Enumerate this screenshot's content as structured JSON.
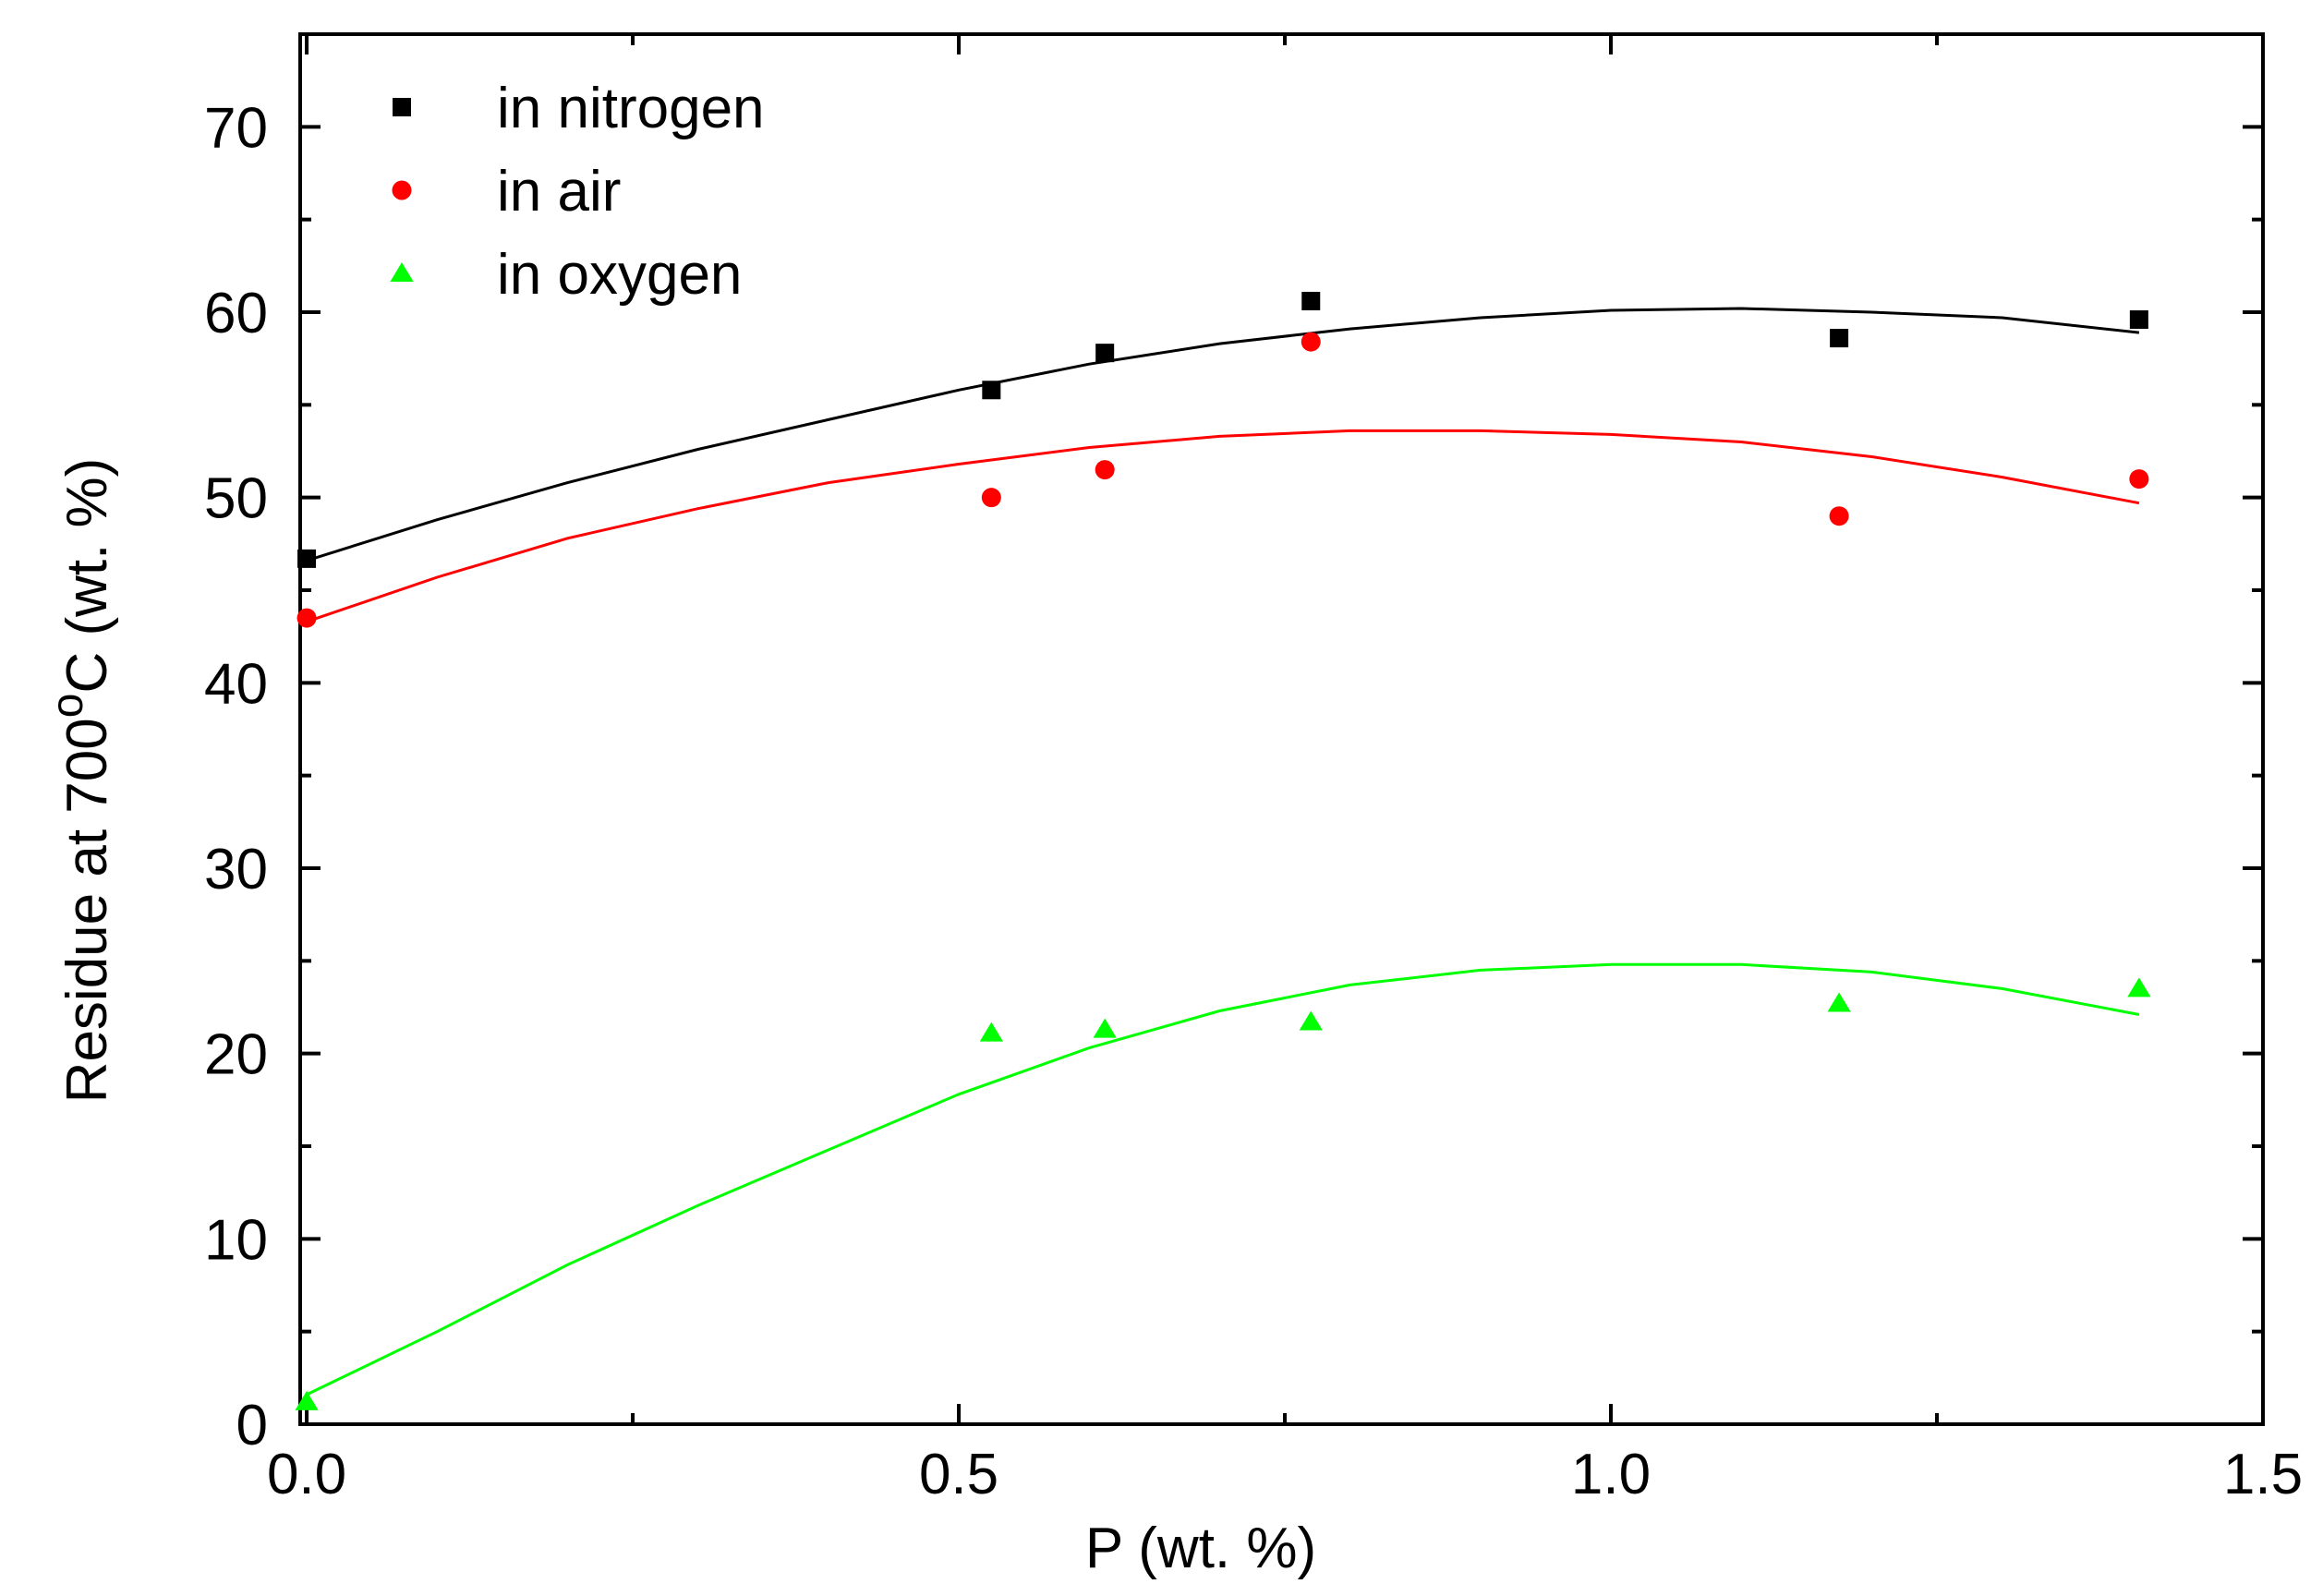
{
  "chart_data": {
    "type": "scatter",
    "title": "",
    "xlabel": "P (wt. %)",
    "ylabel": {
      "prefix": "Residue at 700",
      "superscript": "o",
      "suffix": "C (wt. %)"
    },
    "xlim": [
      -0.005,
      1.5
    ],
    "ylim": [
      0,
      75
    ],
    "x_ticks": [
      0.0,
      0.5,
      1.0,
      1.5
    ],
    "x_tick_labels": [
      "0.0",
      "0.5",
      "1.0",
      "1.5"
    ],
    "x_minor_ticks": [
      0.25,
      0.75,
      1.25
    ],
    "y_ticks": [
      0,
      10,
      20,
      30,
      40,
      50,
      60,
      70
    ],
    "y_tick_labels": [
      "0",
      "10",
      "20",
      "30",
      "40",
      "50",
      "60",
      "70"
    ],
    "y_minor_ticks": [
      5,
      15,
      25,
      35,
      45,
      55,
      65
    ],
    "grid": false,
    "legend_position": "top-left",
    "series": [
      {
        "name": "in nitrogen",
        "marker": "square",
        "color": "#000000",
        "x": [
          0.0,
          0.525,
          0.612,
          0.77,
          1.175,
          1.405
        ],
        "y": [
          46.7,
          55.8,
          57.8,
          60.6,
          58.6,
          59.6
        ],
        "fit": {
          "x": [
            0.0,
            0.1,
            0.2,
            0.3,
            0.4,
            0.5,
            0.6,
            0.7,
            0.8,
            0.9,
            1.0,
            1.1,
            1.2,
            1.3,
            1.405
          ],
          "y": [
            46.6,
            48.8,
            50.8,
            52.6,
            54.2,
            55.8,
            57.2,
            58.3,
            59.1,
            59.7,
            60.1,
            60.2,
            60.0,
            59.7,
            58.9
          ]
        }
      },
      {
        "name": "in air",
        "marker": "circle",
        "color": "#ff0000",
        "x": [
          0.0,
          0.525,
          0.612,
          0.77,
          1.175,
          1.405
        ],
        "y": [
          43.5,
          50.0,
          51.5,
          58.4,
          49.0,
          51.0
        ],
        "fit": {
          "x": [
            0.0,
            0.1,
            0.2,
            0.3,
            0.4,
            0.5,
            0.6,
            0.7,
            0.8,
            0.9,
            1.0,
            1.1,
            1.2,
            1.3,
            1.405
          ],
          "y": [
            43.3,
            45.7,
            47.8,
            49.4,
            50.8,
            51.8,
            52.7,
            53.3,
            53.6,
            53.6,
            53.4,
            53.0,
            52.2,
            51.1,
            49.7
          ]
        }
      },
      {
        "name": "in oxygen",
        "marker": "triangle",
        "color": "#00ff00",
        "x": [
          0.0,
          0.525,
          0.612,
          0.77,
          1.175,
          1.405
        ],
        "y": [
          1.2,
          21.1,
          21.3,
          21.7,
          22.7,
          23.5
        ],
        "fit": {
          "x": [
            0.0,
            0.1,
            0.2,
            0.3,
            0.4,
            0.5,
            0.6,
            0.7,
            0.8,
            0.9,
            1.0,
            1.1,
            1.2,
            1.3,
            1.405
          ],
          "y": [
            1.6,
            5.0,
            8.6,
            11.8,
            14.8,
            17.8,
            20.3,
            22.3,
            23.7,
            24.5,
            24.8,
            24.8,
            24.4,
            23.5,
            22.1
          ]
        }
      }
    ]
  }
}
